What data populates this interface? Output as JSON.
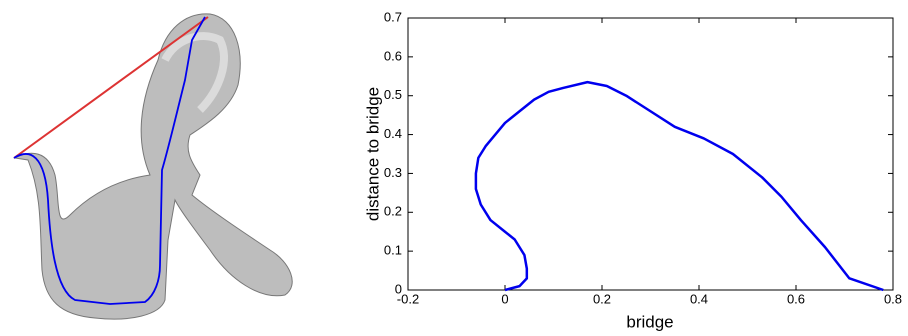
{
  "chart_data": {
    "type": "line",
    "x_label": "bridge",
    "y_label": "distance to bridge",
    "xlim": [
      -0.2,
      0.8
    ],
    "ylim": [
      0,
      0.7
    ],
    "xticks": [
      -0.2,
      0,
      0.2,
      0.4,
      0.6,
      0.8
    ],
    "yticks": [
      0,
      0.1,
      0.2,
      0.3,
      0.4,
      0.5,
      0.6,
      0.7
    ],
    "series": [
      {
        "color": "#0000ee",
        "x": [
          0.0,
          0.03,
          0.045,
          0.045,
          0.04,
          0.02,
          0.0,
          -0.03,
          -0.05,
          -0.06,
          -0.06,
          -0.055,
          -0.04,
          0.0,
          0.03,
          0.06,
          0.09,
          0.12,
          0.17,
          0.21,
          0.25,
          0.3,
          0.35,
          0.41,
          0.47,
          0.53,
          0.57,
          0.61,
          0.66,
          0.71,
          0.78
        ],
        "values": [
          0.0,
          0.01,
          0.03,
          0.055,
          0.09,
          0.13,
          0.15,
          0.18,
          0.22,
          0.26,
          0.3,
          0.34,
          0.37,
          0.43,
          0.46,
          0.49,
          0.51,
          0.52,
          0.535,
          0.525,
          0.5,
          0.46,
          0.42,
          0.39,
          0.35,
          0.29,
          0.24,
          0.18,
          0.11,
          0.03,
          0.0
        ]
      }
    ]
  }
}
